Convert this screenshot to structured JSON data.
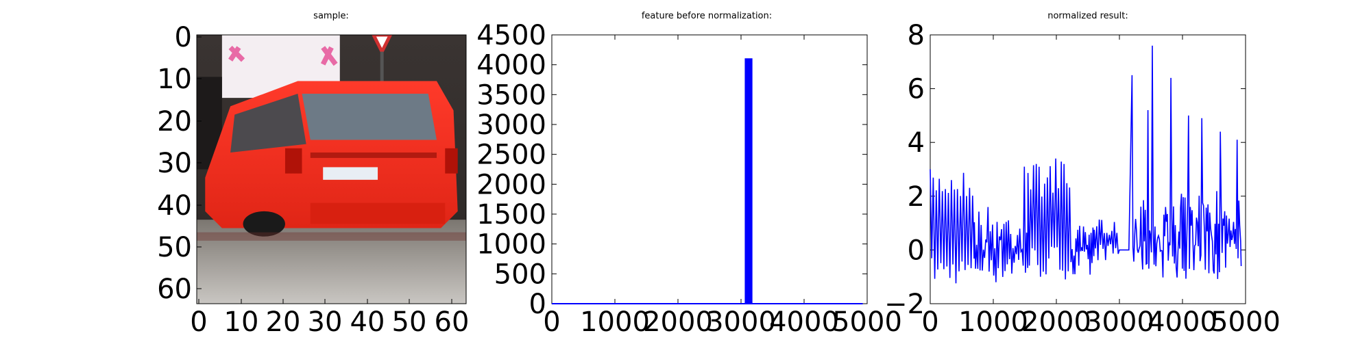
{
  "figure": {
    "panels": [
      {
        "title": "sample:",
        "content": "image of a red hatchback car viewed from the rear-left, parked on a street with a white sign and a triangular yield sign in the background",
        "xticks": [
          "0",
          "10",
          "20",
          "30",
          "40",
          "50",
          "60"
        ],
        "yticks": [
          "0",
          "10",
          "20",
          "30",
          "40",
          "50",
          "60"
        ]
      },
      {
        "title": "feature before normalization:"
      },
      {
        "title": "normalized result:"
      }
    ]
  },
  "chart_data": [
    {
      "type": "line",
      "title": "feature before normalization:",
      "xlim": [
        0,
        5000
      ],
      "ylim": [
        0,
        4500
      ],
      "xticks": [
        0,
        1000,
        2000,
        3000,
        4000,
        5000
      ],
      "yticks": [
        0,
        500,
        1000,
        1500,
        2000,
        2500,
        3000,
        3500,
        4000,
        4500
      ],
      "color": "#0000ff",
      "baseline": 0,
      "spikes": [
        {
          "x": 3080,
          "y": 4096
        },
        {
          "x": 3120,
          "y": 4096
        },
        {
          "x": 3160,
          "y": 4096
        }
      ],
      "x_end": 4930
    },
    {
      "type": "line",
      "title": "normalized result:",
      "xlim": [
        0,
        5000
      ],
      "ylim": [
        -2,
        8
      ],
      "xticks": [
        0,
        1000,
        2000,
        3000,
        4000,
        5000
      ],
      "yticks": [
        -2,
        0,
        2,
        4,
        6,
        8
      ],
      "ytick_labels": [
        "−2",
        "0",
        "2",
        "4",
        "6",
        "8"
      ],
      "color": "#0000ff",
      "x_end": 4930,
      "segments": [
        {
          "x0": 0,
          "x1": 700,
          "low": -1.3,
          "high": 3.0,
          "spacing": 24,
          "noise": 0.25
        },
        {
          "x0": 700,
          "x1": 1550,
          "low": -1.3,
          "high": 1.7,
          "spacing": 18,
          "noise": 0.6
        },
        {
          "x0": 1550,
          "x1": 2250,
          "low": -1.1,
          "high": 3.3,
          "spacing": 22,
          "noise": 0.3
        },
        {
          "x0": 2250,
          "x1": 2600,
          "low": -1.2,
          "high": 0.9,
          "spacing": 15,
          "noise": 0.6
        },
        {
          "x0": 2600,
          "x1": 3000,
          "low": -0.4,
          "high": 1.2,
          "spacing": 20,
          "noise": 0.4
        },
        {
          "x0": 3000,
          "x1": 3200,
          "low": 0.0,
          "high": 0.0,
          "spacing": 50,
          "noise": 0.0
        },
        {
          "x0": 3200,
          "x1": 4930,
          "low": -1.1,
          "high": 2.2,
          "spacing": 14,
          "noise": 0.9
        }
      ],
      "peaks": [
        {
          "x": 3190,
          "y": 6.5
        },
        {
          "x": 3450,
          "y": 5.2
        },
        {
          "x": 3520,
          "y": 7.6
        },
        {
          "x": 3820,
          "y": 6.4
        },
        {
          "x": 4100,
          "y": 5.0
        },
        {
          "x": 4300,
          "y": 4.9
        },
        {
          "x": 4600,
          "y": 4.4
        },
        {
          "x": 4860,
          "y": 4.1
        },
        {
          "x": 2000,
          "y": 3.4
        },
        {
          "x": 1500,
          "y": 3.1
        }
      ]
    }
  ]
}
